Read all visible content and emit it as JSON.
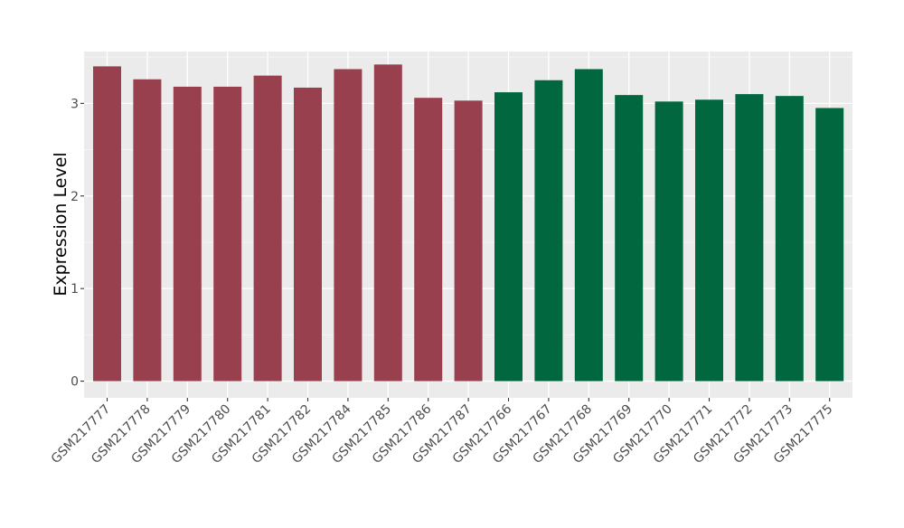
{
  "chart_data": {
    "type": "bar",
    "title": "",
    "xlabel": "",
    "ylabel": "Expression Level",
    "ylim": [
      -0.18,
      3.56
    ],
    "yticks": [
      0,
      1,
      2,
      3
    ],
    "grid": true,
    "legend": "none",
    "background_color": "#ebebeb",
    "categories": [
      "GSM217777",
      "GSM217778",
      "GSM217779",
      "GSM217780",
      "GSM217781",
      "GSM217782",
      "GSM217784",
      "GSM217785",
      "GSM217786",
      "GSM217787",
      "GSM217766",
      "GSM217767",
      "GSM217768",
      "GSM217769",
      "GSM217770",
      "GSM217771",
      "GSM217772",
      "GSM217773",
      "GSM217775"
    ],
    "values": [
      3.4,
      3.26,
      3.18,
      3.18,
      3.3,
      3.17,
      3.37,
      3.42,
      3.06,
      3.03,
      3.12,
      3.25,
      3.37,
      3.09,
      3.02,
      3.04,
      3.1,
      3.08,
      2.95
    ],
    "groups": [
      {
        "color": "#99404f",
        "count": 10
      },
      {
        "color": "#00673f",
        "count": 9
      }
    ]
  }
}
